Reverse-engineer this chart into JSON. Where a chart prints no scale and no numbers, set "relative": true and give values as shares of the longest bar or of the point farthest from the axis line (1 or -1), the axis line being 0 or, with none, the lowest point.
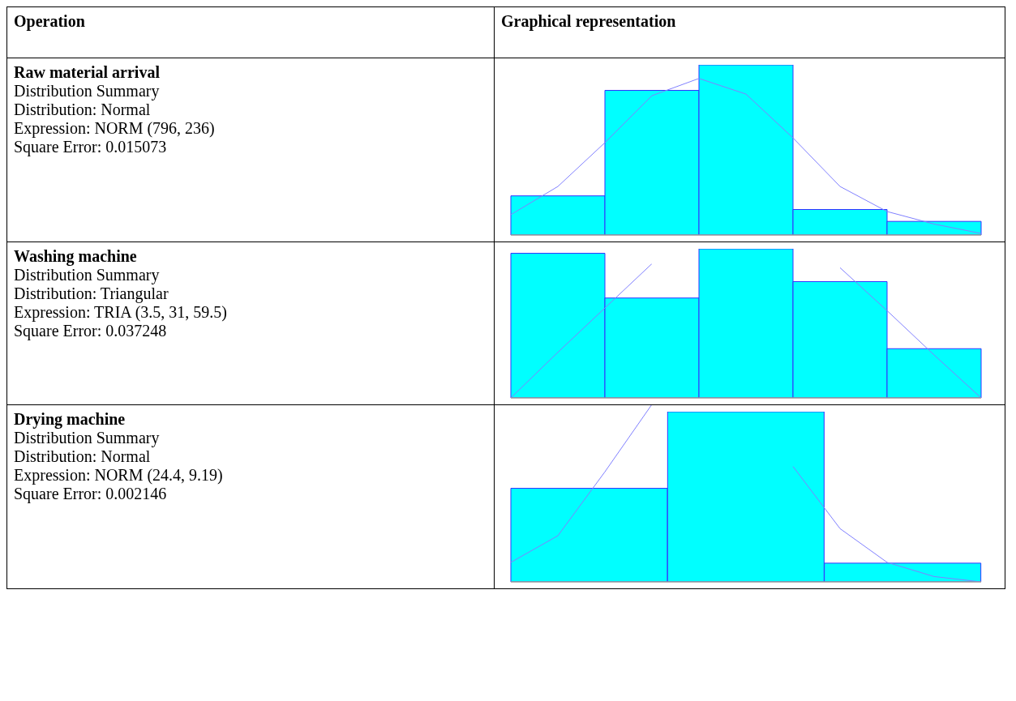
{
  "chart_data": [
    {
      "type": "other",
      "title": "Operation"
    },
    {
      "type": "other",
      "title": "Graphical representation"
    },
    {
      "type": "other",
      "title": "Raw material arrival",
      "annotations": [
        "Distribution Summary",
        "Distribution: Normal",
        "Expression: NORM (796, 236)",
        "Square Error: 0.015073"
      ]
    },
    {
      "type": "bar",
      "relative": true,
      "categories": [
        null,
        null,
        null,
        null,
        null
      ],
      "color": "#00ffff",
      "values": [
        0.23,
        0.85,
        1,
        0.15,
        0.08
      ]
    },
    {
      "type": "line",
      "relative": true,
      "categories": [
        null,
        null,
        null,
        null,
        null,
        null,
        null,
        null,
        null,
        null,
        null
      ],
      "color": "#8080ff",
      "values": [
        0.13,
        0.31,
        0.59,
        0.89,
        1,
        0.9,
        0.62,
        0.31,
        0.15,
        0.07,
        0.01
      ]
    },
    {
      "type": "other",
      "title": "Washing machine",
      "annotations": [
        "Distribution Summary",
        "Distribution: Triangular",
        "Expression: TRIA (3.5, 31, 59.5)",
        "Square Error: 0.037248"
      ]
    },
    {
      "type": "bar",
      "relative": true,
      "categories": [
        null,
        null,
        null,
        null,
        null
      ],
      "color": "#00ffff",
      "values": [
        0.97,
        0.67,
        1,
        0.78,
        0.33
      ]
    },
    {
      "type": "line",
      "relative": true,
      "categories": [
        null,
        null,
        null,
        null,
        null,
        null,
        null,
        null,
        null,
        null,
        null
      ],
      "color": "#8080ff",
      "values": [
        0,
        0.34,
        0.67,
        1,
        null,
        null,
        null,
        0.97,
        0.65,
        0.32,
        0
      ]
    },
    {
      "type": "other",
      "title": "Drying machine",
      "annotations": [
        "Distribution Summary",
        "Distribution: Normal",
        "Expression: NORM (24.4, 9.19)",
        "Square Error: 0.002146"
      ]
    },
    {
      "type": "bar",
      "relative": true,
      "categories": [
        null,
        null,
        null
      ],
      "color": "#00ffff",
      "values": [
        0.55,
        1,
        0.11
      ]
    },
    {
      "type": "line",
      "relative": true,
      "categories": [
        null,
        null,
        null,
        null,
        null,
        null,
        null,
        null,
        null,
        null,
        null
      ],
      "color": "#8080ff",
      "values": [
        0.11,
        0.26,
        0.62,
        1,
        null,
        null,
        0.65,
        0.3,
        0.11,
        0.03,
        0
      ]
    }
  ]
}
